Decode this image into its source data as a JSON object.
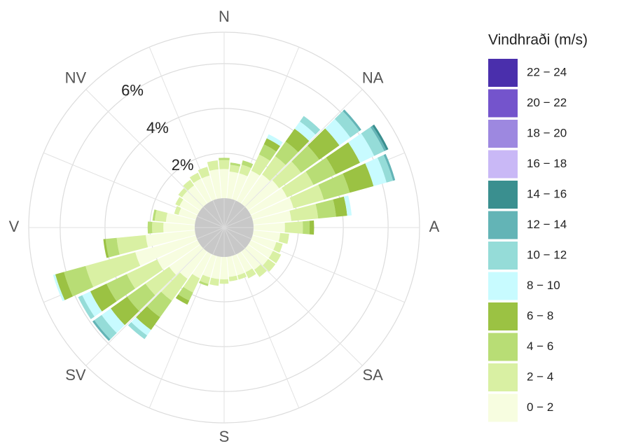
{
  "chart_data": {
    "type": "windrose",
    "legend_title": "Vindhraði (m/s)",
    "x": [
      0,
      10,
      20,
      30,
      40,
      50,
      60,
      70,
      80,
      90,
      100,
      110,
      120,
      130,
      140,
      150,
      160,
      170,
      180,
      190,
      200,
      210,
      220,
      230,
      240,
      250,
      260,
      270,
      280,
      290,
      300,
      310,
      320,
      330,
      340,
      350
    ],
    "xlim": [
      0,
      360
    ],
    "xticks": [
      {
        "value": 0,
        "label": "N"
      },
      {
        "value": 45,
        "label": "NA"
      },
      {
        "value": 90,
        "label": "A"
      },
      {
        "value": 135,
        "label": "SA"
      },
      {
        "value": 180,
        "label": "S"
      },
      {
        "value": 225,
        "label": "SV"
      },
      {
        "value": 270,
        "label": "V"
      },
      {
        "value": 315,
        "label": "NV"
      }
    ],
    "ylim": [
      0,
      7.4
    ],
    "yticks": [
      {
        "value": 2,
        "label": "2%"
      },
      {
        "value": 4,
        "label": "4%"
      },
      {
        "value": 6,
        "label": "6%"
      }
    ],
    "grid": true,
    "series": [
      {
        "name": "0 − 2",
        "color": "#f7fde0",
        "values": [
          1.3,
          1.2,
          1.2,
          1.5,
          1.6,
          1.7,
          1.8,
          1.9,
          1.7,
          1.4,
          1.2,
          1.1,
          1.1,
          1.1,
          1.0,
          0.9,
          0.9,
          0.9,
          1.0,
          1.0,
          1.0,
          1.2,
          1.5,
          1.7,
          2.0,
          2.8,
          2.2,
          1.4,
          1.3,
          0.8,
          0.9,
          1.0,
          1.0,
          1.1,
          1.1,
          1.3
        ]
      },
      {
        "name": "2 − 4",
        "color": "#d9f0a3",
        "values": [
          0.4,
          0.3,
          0.4,
          0.8,
          1.0,
          1.2,
          1.3,
          1.4,
          1.2,
          0.8,
          0.4,
          0.3,
          0.4,
          0.4,
          0.4,
          0.3,
          0.2,
          0.2,
          0.2,
          0.3,
          0.3,
          0.7,
          1.2,
          1.3,
          1.5,
          2.3,
          1.3,
          0.5,
          0.5,
          0.2,
          0.2,
          0.2,
          0.3,
          0.3,
          0.4,
          0.4
        ]
      },
      {
        "name": "4 − 6",
        "color": "#b8dd75",
        "values": [
          0.1,
          0.1,
          0.2,
          0.5,
          0.8,
          1.0,
          1.1,
          1.2,
          0.8,
          0.3,
          0,
          0,
          0,
          0,
          0,
          0,
          0,
          0,
          0,
          0,
          0.1,
          0.4,
          0.9,
          1.0,
          1.0,
          1.0,
          0.5,
          0.2,
          0.1,
          0,
          0,
          0,
          0,
          0,
          0,
          0
        ]
      },
      {
        "name": "6 − 8",
        "color": "#9bc243",
        "values": [
          0,
          0,
          0,
          0.3,
          0.7,
          1.1,
          1.2,
          1.1,
          0.5,
          0.2,
          0,
          0,
          0,
          0,
          0,
          0,
          0,
          0,
          0,
          0,
          0,
          0.2,
          0.7,
          0.9,
          0.8,
          0.4,
          0.1,
          0,
          0,
          0,
          0,
          0,
          0,
          0,
          0,
          0
        ]
      },
      {
        "name": "8 − 10",
        "color": "#c8fbff",
        "values": [
          0,
          0,
          0,
          0.2,
          0.4,
          0.6,
          0.7,
          0.6,
          0.2,
          0,
          0,
          0,
          0,
          0,
          0,
          0,
          0,
          0,
          0,
          0,
          0,
          0,
          0.3,
          0.5,
          0.4,
          0.1,
          0,
          0,
          0,
          0,
          0,
          0,
          0,
          0,
          0,
          0
        ]
      },
      {
        "name": "10 − 12",
        "color": "#95dcd8",
        "values": [
          0,
          0,
          0,
          0,
          0.3,
          0.5,
          0.5,
          0.3,
          0,
          0,
          0,
          0,
          0,
          0,
          0,
          0,
          0,
          0,
          0,
          0,
          0,
          0,
          0.2,
          0.4,
          0.2,
          0,
          0,
          0,
          0,
          0,
          0,
          0,
          0,
          0,
          0,
          0
        ]
      },
      {
        "name": "12 − 14",
        "color": "#63b4b6",
        "values": [
          0,
          0,
          0,
          0,
          0,
          0.1,
          0.1,
          0.1,
          0,
          0,
          0,
          0,
          0,
          0,
          0,
          0,
          0,
          0,
          0,
          0,
          0,
          0,
          0,
          0.1,
          0,
          0,
          0,
          0,
          0,
          0,
          0,
          0,
          0,
          0,
          0,
          0
        ]
      },
      {
        "name": "14 − 16",
        "color": "#3a8f8f",
        "values": [
          0,
          0,
          0,
          0,
          0,
          0,
          0.1,
          0,
          0,
          0,
          0,
          0,
          0,
          0,
          0,
          0,
          0,
          0,
          0,
          0,
          0,
          0,
          0,
          0,
          0,
          0,
          0,
          0,
          0,
          0,
          0,
          0,
          0,
          0,
          0,
          0
        ]
      },
      {
        "name": "16 − 18",
        "color": "#c9b8f6",
        "values": [
          0,
          0,
          0,
          0,
          0,
          0,
          0,
          0,
          0,
          0,
          0,
          0,
          0,
          0,
          0,
          0,
          0,
          0,
          0,
          0,
          0,
          0,
          0,
          0,
          0,
          0,
          0,
          0,
          0,
          0,
          0,
          0,
          0,
          0,
          0,
          0
        ]
      },
      {
        "name": "18 − 20",
        "color": "#9d88e0",
        "values": [
          0,
          0,
          0,
          0,
          0,
          0,
          0,
          0,
          0,
          0,
          0,
          0,
          0,
          0,
          0,
          0,
          0,
          0,
          0,
          0,
          0,
          0,
          0,
          0,
          0,
          0,
          0,
          0,
          0,
          0,
          0,
          0,
          0,
          0,
          0,
          0
        ]
      },
      {
        "name": "20 − 22",
        "color": "#7454cc",
        "values": [
          0,
          0,
          0,
          0,
          0,
          0,
          0,
          0,
          0,
          0,
          0,
          0,
          0,
          0,
          0,
          0,
          0,
          0,
          0,
          0,
          0,
          0,
          0,
          0,
          0,
          0,
          0,
          0,
          0,
          0,
          0,
          0,
          0,
          0,
          0,
          0
        ]
      },
      {
        "name": "22 − 24",
        "color": "#4a2fac",
        "values": [
          0,
          0,
          0,
          0,
          0,
          0,
          0,
          0,
          0,
          0,
          0,
          0,
          0,
          0,
          0,
          0,
          0,
          0,
          0,
          0,
          0,
          0,
          0,
          0,
          0,
          0,
          0,
          0,
          0,
          0,
          0,
          0,
          0,
          0,
          0,
          0
        ]
      }
    ]
  }
}
